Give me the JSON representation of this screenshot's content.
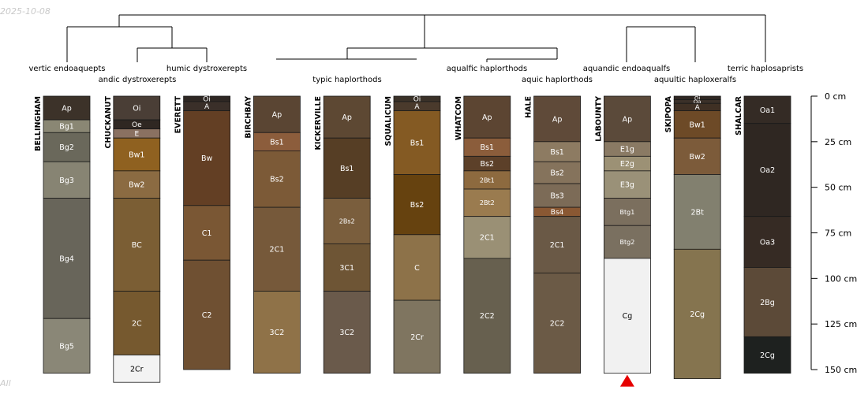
{
  "watermark": {
    "date": "2025-10-08",
    "note": "All"
  },
  "depth_axis": {
    "unit": "cm",
    "max_cm": 150,
    "ticks": [
      "0 cm",
      "25 cm",
      "50 cm",
      "75 cm",
      "100 cm",
      "125 cm",
      "150 cm"
    ]
  },
  "taxa": [
    {
      "id": "t1",
      "name": "vertic endoaquepts"
    },
    {
      "id": "t2",
      "name": "andic dystroxerepts"
    },
    {
      "id": "t3",
      "name": "humic dystroxerepts"
    },
    {
      "id": "t4",
      "name": "typic haplorthods"
    },
    {
      "id": "t5",
      "name": "aqualfic haplorthods"
    },
    {
      "id": "t6",
      "name": "aquic haplorthods"
    },
    {
      "id": "t7",
      "name": "aquandic endoaqualfs"
    },
    {
      "id": "t8",
      "name": "aquultic haploxeralfs"
    },
    {
      "id": "t9",
      "name": "terric haplosaprists"
    }
  ],
  "profiles": [
    {
      "name": "BELLINGHAM",
      "horizons": [
        {
          "name": "Ap",
          "top": 0,
          "bottom": 13,
          "color": "#3c3229"
        },
        {
          "name": "Bg1",
          "top": 13,
          "bottom": 20,
          "color": "#8a8774"
        },
        {
          "name": "Bg2",
          "top": 20,
          "bottom": 36,
          "color": "#6a685b"
        },
        {
          "name": "Bg3",
          "top": 36,
          "bottom": 56,
          "color": "#878473"
        },
        {
          "name": "Bg4",
          "top": 56,
          "bottom": 122,
          "color": "#68655a"
        },
        {
          "name": "Bg5",
          "top": 122,
          "bottom": 152,
          "color": "#8a8777"
        }
      ]
    },
    {
      "name": "CHUCKANUT",
      "horizons": [
        {
          "name": "Oi",
          "top": 0,
          "bottom": 13,
          "color": "#4a3e36"
        },
        {
          "name": "Oe",
          "top": 13,
          "bottom": 18,
          "color": "#2f2722"
        },
        {
          "name": "E",
          "top": 18,
          "bottom": 23,
          "color": "#8a7161"
        },
        {
          "name": "Bw1",
          "top": 23,
          "bottom": 41,
          "color": "#8f6120"
        },
        {
          "name": "Bw2",
          "top": 41,
          "bottom": 56,
          "color": "#8b6b42"
        },
        {
          "name": "BC",
          "top": 56,
          "bottom": 107,
          "color": "#7b5e34"
        },
        {
          "name": "2C",
          "top": 107,
          "bottom": 142,
          "color": "#76592f"
        },
        {
          "name": "2Cr",
          "top": 142,
          "bottom": 157,
          "color": "#f3f3f3"
        }
      ]
    },
    {
      "name": "EVERETT",
      "horizons": [
        {
          "name": "Oi",
          "top": 0,
          "bottom": 3,
          "color": "#2e2723"
        },
        {
          "name": "A",
          "top": 3,
          "bottom": 8,
          "color": "#3a2f29"
        },
        {
          "name": "Bw",
          "top": 8,
          "bottom": 60,
          "color": "#633f24"
        },
        {
          "name": "C1",
          "top": 60,
          "bottom": 90,
          "color": "#7a5734"
        },
        {
          "name": "C2",
          "top": 90,
          "bottom": 150,
          "color": "#6f5032"
        }
      ]
    },
    {
      "name": "BIRCHBAY",
      "horizons": [
        {
          "name": "Ap",
          "top": 0,
          "bottom": 20,
          "color": "#5a4533"
        },
        {
          "name": "Bs1",
          "top": 20,
          "bottom": 30,
          "color": "#8c5d3c"
        },
        {
          "name": "Bs2",
          "top": 30,
          "bottom": 61,
          "color": "#7c5a37"
        },
        {
          "name": "2C1",
          "top": 61,
          "bottom": 107,
          "color": "#76593a"
        },
        {
          "name": "3C2",
          "top": 107,
          "bottom": 152,
          "color": "#8f7248"
        }
      ]
    },
    {
      "name": "KICKERVILLE",
      "horizons": [
        {
          "name": "Ap",
          "top": 0,
          "bottom": 23,
          "color": "#5d4833"
        },
        {
          "name": "Bs1",
          "top": 23,
          "bottom": 56,
          "color": "#563e25"
        },
        {
          "name": "2Bs2",
          "top": 56,
          "bottom": 81,
          "color": "#7a5e3d"
        },
        {
          "name": "3C1",
          "top": 81,
          "bottom": 107,
          "color": "#6e5535"
        },
        {
          "name": "3C2",
          "top": 107,
          "bottom": 152,
          "color": "#6a5a4b"
        }
      ]
    },
    {
      "name": "SQUALICUM",
      "horizons": [
        {
          "name": "Oi",
          "top": 0,
          "bottom": 3,
          "color": "#3a3128"
        },
        {
          "name": "A",
          "top": 3,
          "bottom": 8,
          "color": "#4a3a2c"
        },
        {
          "name": "Bs1",
          "top": 8,
          "bottom": 43,
          "color": "#845a23"
        },
        {
          "name": "Bs2",
          "top": 43,
          "bottom": 76,
          "color": "#66420f"
        },
        {
          "name": "C",
          "top": 76,
          "bottom": 112,
          "color": "#8d7249"
        },
        {
          "name": "2Cr",
          "top": 112,
          "bottom": 152,
          "color": "#7f7560"
        }
      ]
    },
    {
      "name": "WHATCOM",
      "horizons": [
        {
          "name": "Ap",
          "top": 0,
          "bottom": 23,
          "color": "#5c4532"
        },
        {
          "name": "Bs1",
          "top": 23,
          "bottom": 33,
          "color": "#8b5d3b"
        },
        {
          "name": "Bs2",
          "top": 33,
          "bottom": 41,
          "color": "#5c4029"
        },
        {
          "name": "2Bt1",
          "top": 41,
          "bottom": 51,
          "color": "#8d6a3f"
        },
        {
          "name": "2Bt2",
          "top": 51,
          "bottom": 66,
          "color": "#9a7b4f"
        },
        {
          "name": "2C1",
          "top": 66,
          "bottom": 89,
          "color": "#9a9075"
        },
        {
          "name": "2C2",
          "top": 89,
          "bottom": 152,
          "color": "#67604f"
        }
      ]
    },
    {
      "name": "HALE",
      "horizons": [
        {
          "name": "Ap",
          "top": 0,
          "bottom": 25,
          "color": "#5f4a39"
        },
        {
          "name": "Bs1",
          "top": 25,
          "bottom": 36,
          "color": "#8d7b62"
        },
        {
          "name": "Bs2",
          "top": 36,
          "bottom": 48,
          "color": "#85735c"
        },
        {
          "name": "Bs3",
          "top": 48,
          "bottom": 61,
          "color": "#7c6b57"
        },
        {
          "name": "Bs4",
          "top": 61,
          "bottom": 66,
          "color": "#8a5833"
        },
        {
          "name": "2C1",
          "top": 66,
          "bottom": 97,
          "color": "#6a5946"
        },
        {
          "name": "2C2",
          "top": 97,
          "bottom": 152,
          "color": "#6b5a46"
        }
      ]
    },
    {
      "name": "LABOUNTY",
      "bottom_marker": true,
      "horizons": [
        {
          "name": "Ap",
          "top": 0,
          "bottom": 25,
          "color": "#5b4a3a"
        },
        {
          "name": "E1g",
          "top": 25,
          "bottom": 33,
          "color": "#8a7a64"
        },
        {
          "name": "E2g",
          "top": 33,
          "bottom": 41,
          "color": "#9c9175"
        },
        {
          "name": "E3g",
          "top": 41,
          "bottom": 56,
          "color": "#9a9178"
        },
        {
          "name": "Btg1",
          "top": 56,
          "bottom": 71,
          "color": "#7b6f5e"
        },
        {
          "name": "Btg2",
          "top": 71,
          "bottom": 89,
          "color": "#7a7060"
        },
        {
          "name": "Cg",
          "top": 89,
          "bottom": 152,
          "color": "#f1f1f1"
        }
      ]
    },
    {
      "name": "SKIPOPA",
      "horizons": [
        {
          "name": "Oi",
          "top": 0,
          "bottom": 2,
          "color": "#2f2722"
        },
        {
          "name": "Oa",
          "top": 2,
          "bottom": 4,
          "color": "#3b3129"
        },
        {
          "name": "A",
          "top": 4,
          "bottom": 8,
          "color": "#3f3024"
        },
        {
          "name": "Bw1",
          "top": 8,
          "bottom": 23,
          "color": "#6d4a27"
        },
        {
          "name": "Bw2",
          "top": 23,
          "bottom": 43,
          "color": "#7c5b3a"
        },
        {
          "name": "2Bt",
          "top": 43,
          "bottom": 84,
          "color": "#82806f"
        },
        {
          "name": "2Cg",
          "top": 84,
          "bottom": 155,
          "color": "#85744f"
        }
      ]
    },
    {
      "name": "SHALCAR",
      "horizons": [
        {
          "name": "Oa1",
          "top": 0,
          "bottom": 15,
          "color": "#342b25"
        },
        {
          "name": "Oa2",
          "top": 15,
          "bottom": 66,
          "color": "#2f2722"
        },
        {
          "name": "Oa3",
          "top": 66,
          "bottom": 94,
          "color": "#362b24"
        },
        {
          "name": "2Bg",
          "top": 94,
          "bottom": 132,
          "color": "#5c4a38"
        },
        {
          "name": "2Cg",
          "top": 132,
          "bottom": 152,
          "color": "#1e211f"
        }
      ]
    }
  ]
}
